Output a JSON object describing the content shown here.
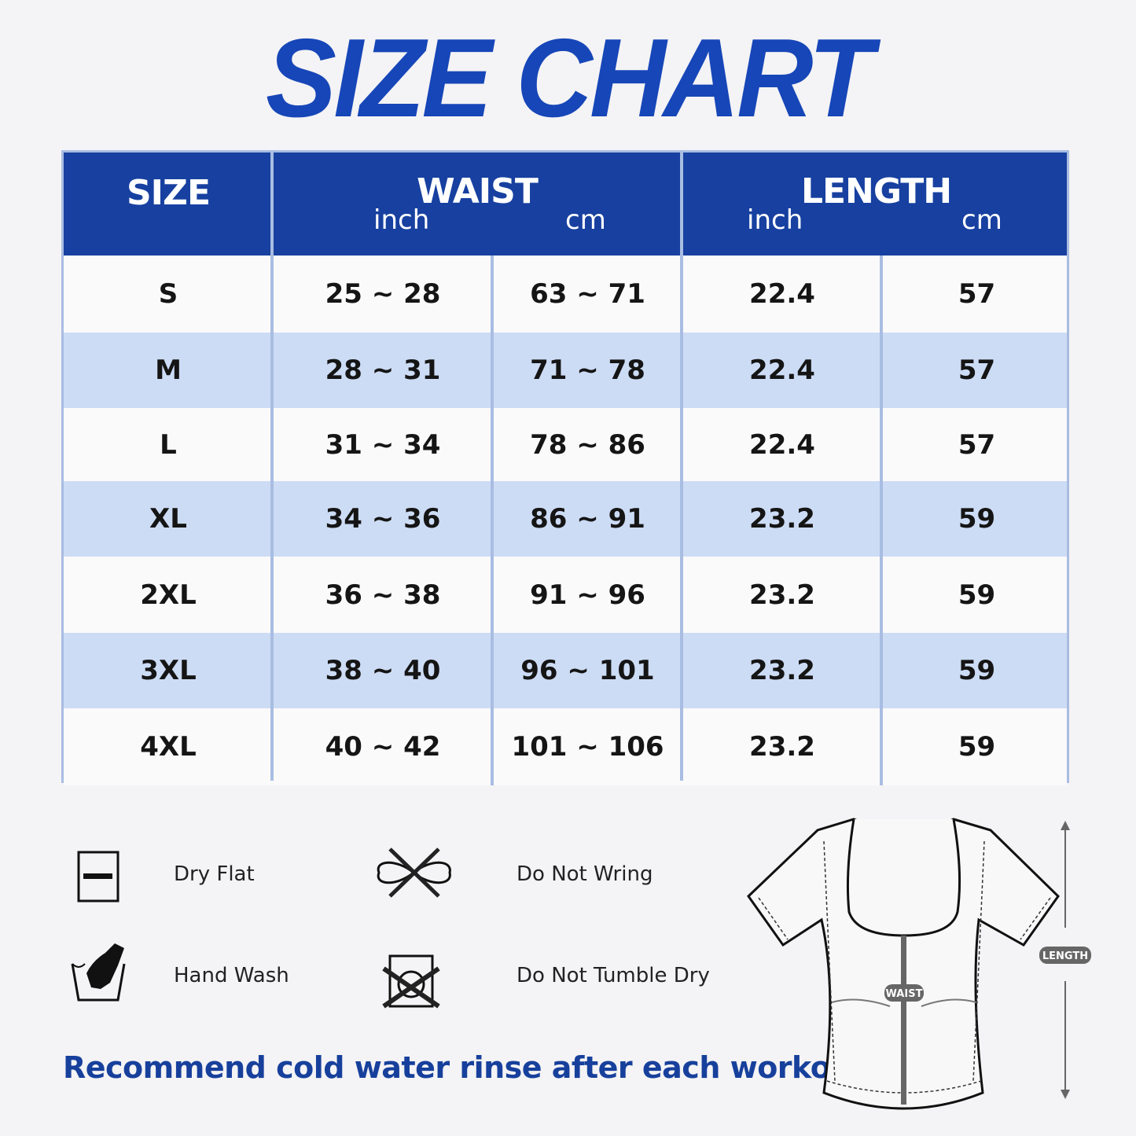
{
  "title": "SIZE CHART",
  "table": {
    "headers": {
      "size": "SIZE",
      "waist": "WAIST",
      "length": "LENGTH",
      "inch": "inch",
      "cm": "cm"
    },
    "rows": [
      {
        "size": "S",
        "waist_in": "25 ~ 28",
        "waist_cm": "63 ~ 71",
        "length_in": "22.4",
        "length_cm": "57"
      },
      {
        "size": "M",
        "waist_in": "28 ~ 31",
        "waist_cm": "71 ~ 78",
        "length_in": "22.4",
        "length_cm": "57"
      },
      {
        "size": "L",
        "waist_in": "31 ~ 34",
        "waist_cm": "78 ~ 86",
        "length_in": "22.4",
        "length_cm": "57"
      },
      {
        "size": "XL",
        "waist_in": "34 ~ 36",
        "waist_cm": "86 ~ 91",
        "length_in": "23.2",
        "length_cm": "59"
      },
      {
        "size": "2XL",
        "waist_in": "36 ~ 38",
        "waist_cm": "91 ~ 96",
        "length_in": "23.2",
        "length_cm": "59"
      },
      {
        "size": "3XL",
        "waist_in": "38 ~ 40",
        "waist_cm": "96 ~ 101",
        "length_in": "23.2",
        "length_cm": "59"
      },
      {
        "size": "4XL",
        "waist_in": "40 ~ 42",
        "waist_cm": "101 ~ 106",
        "length_in": "23.2",
        "length_cm": "59"
      }
    ]
  },
  "care": [
    {
      "label": "Dry Flat",
      "icon": "dry-flat-icon"
    },
    {
      "label": "Do Not Wring",
      "icon": "do-not-wring-icon"
    },
    {
      "label": "Hand Wash",
      "icon": "hand-wash-icon"
    },
    {
      "label": "Do Not Tumble Dry",
      "icon": "do-not-tumble-dry-icon"
    }
  ],
  "note": "Recommend cold water rinse after each workout.",
  "diagram": {
    "waist_label": "WAIST",
    "length_label": "LENGTH"
  },
  "colors": {
    "header": "#1740a0",
    "alt_row": "#cddcf5",
    "title": "#1646b8",
    "note": "#17409c"
  }
}
